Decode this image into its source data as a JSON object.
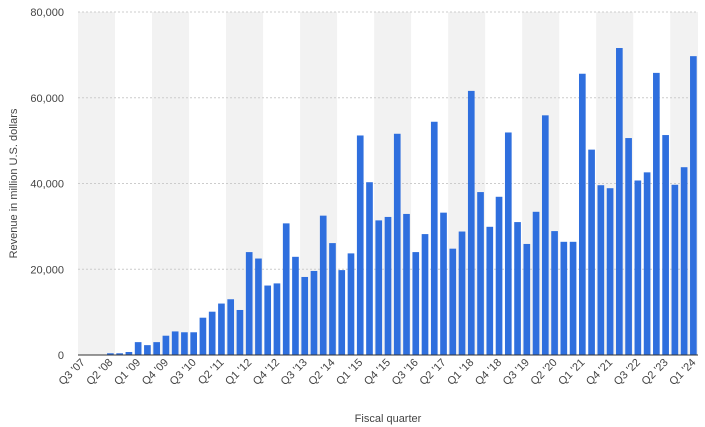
{
  "chart_data": {
    "type": "bar",
    "title": "",
    "xlabel": "Fiscal quarter",
    "ylabel": "Revenue in million U.S. dollars",
    "ylim": [
      0,
      80000
    ],
    "yticks": [
      "0",
      "20,000",
      "40,000",
      "60,000",
      "80,000"
    ],
    "ytick_values": [
      0,
      20000,
      40000,
      60000,
      80000
    ],
    "grid": true,
    "bar_color": "#2f6fde",
    "band_color": "#f2f2f2",
    "grid_color": "#cccccc",
    "categories": [
      "Q3 '07",
      "Q4 '07",
      "Q1 '08",
      "Q2 '08",
      "Q3 '08",
      "Q4 '08",
      "Q1 '09",
      "Q2 '09",
      "Q3 '09",
      "Q4 '09",
      "Q1 '10",
      "Q2 '10",
      "Q3 '10",
      "Q4 '10",
      "Q1 '11",
      "Q2 '11",
      "Q3 '11",
      "Q4 '11",
      "Q1 '12",
      "Q2 '12",
      "Q3 '12",
      "Q4 '12",
      "Q1 '13",
      "Q2 '13",
      "Q3 '13",
      "Q4 '13",
      "Q1 '14",
      "Q2 '14",
      "Q3 '14",
      "Q4 '14",
      "Q1 '15",
      "Q2 '15",
      "Q3 '15",
      "Q4 '15",
      "Q1 '16",
      "Q2 '16",
      "Q3 '16",
      "Q4 '16",
      "Q1 '17",
      "Q2 '17",
      "Q3 '17",
      "Q4 '17",
      "Q1 '18",
      "Q2 '18",
      "Q3 '18",
      "Q4 '18",
      "Q1 '19",
      "Q2 '19",
      "Q3 '19",
      "Q4 '19",
      "Q1 '20",
      "Q2 '20",
      "Q3 '20",
      "Q4 '20",
      "Q1 '21",
      "Q2 '21",
      "Q3 '21",
      "Q4 '21",
      "Q1 '22",
      "Q2 '22",
      "Q3 '22",
      "Q4 '22",
      "Q1 '23",
      "Q2 '23",
      "Q3 '23",
      "Q4 '23",
      "Q1 '24"
    ],
    "values": [
      0,
      0,
      100,
      400,
      400,
      700,
      3000,
      2300,
      3000,
      4500,
      5500,
      5300,
      5300,
      8700,
      10100,
      12000,
      13000,
      10500,
      24000,
      22500,
      16200,
      16700,
      30700,
      22900,
      18200,
      19600,
      32500,
      26100,
      19800,
      23700,
      51200,
      40300,
      31400,
      32200,
      51600,
      32900,
      24000,
      28200,
      54400,
      33200,
      24800,
      28800,
      61600,
      38000,
      29900,
      36900,
      51900,
      31000,
      25900,
      33400,
      55900,
      28900,
      26400,
      26400,
      65600,
      47900,
      39600,
      38900,
      71600,
      50600,
      40700,
      42600,
      65800,
      51300,
      39700,
      43800,
      69700
    ],
    "labeled_categories": [
      "Q3 '07",
      "Q2 '08",
      "Q1 '09",
      "Q4 '09",
      "Q3 '10",
      "Q2 '11",
      "Q1 '12",
      "Q4 '12",
      "Q3 '13",
      "Q2 '14",
      "Q1 '15",
      "Q4 '15",
      "Q3 '16",
      "Q2 '17",
      "Q1 '18",
      "Q4 '18",
      "Q3 '19",
      "Q2 '20",
      "Q1 '21",
      "Q4 '21",
      "Q3 '22",
      "Q2 '23",
      "Q1 '24"
    ]
  }
}
